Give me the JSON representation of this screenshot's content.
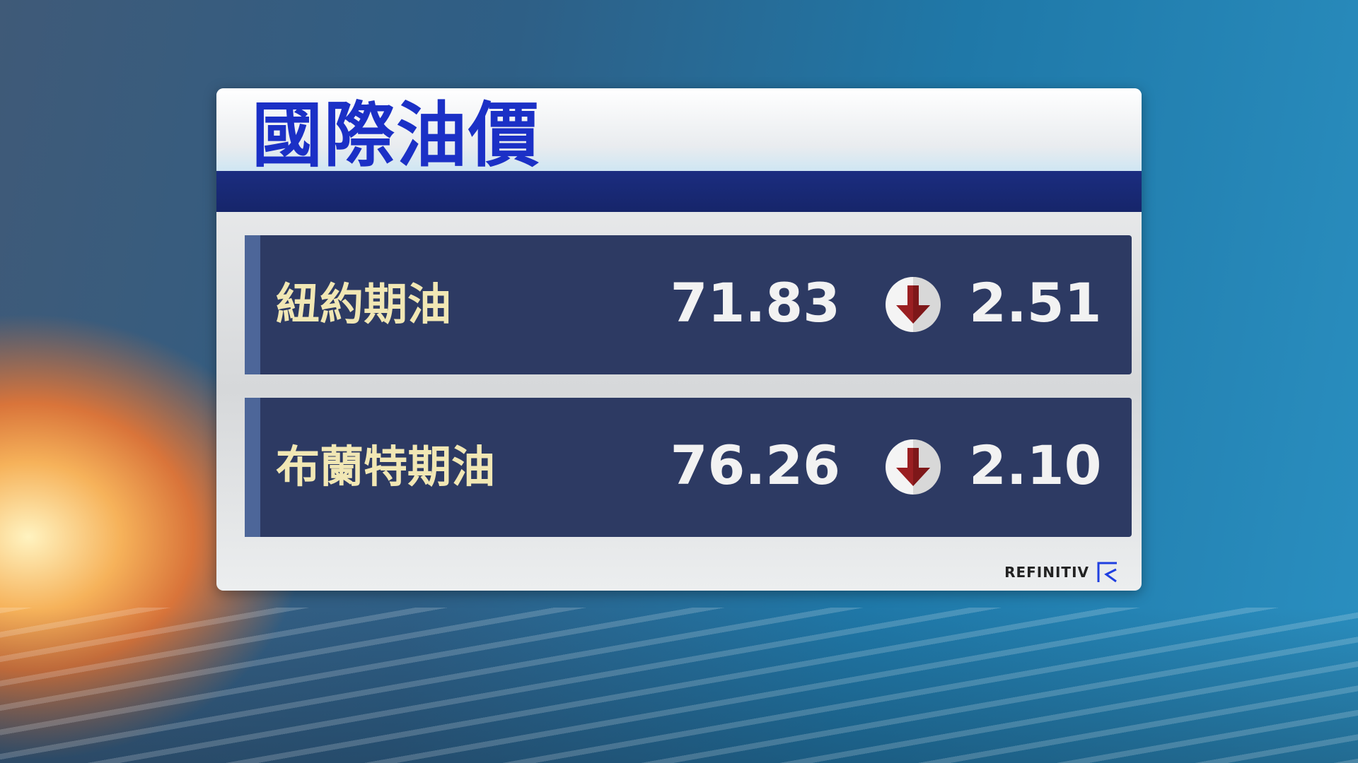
{
  "title": "國際油價",
  "rows": [
    {
      "label": "紐約期油",
      "price": "71.83",
      "direction": "down",
      "change": "2.51"
    },
    {
      "label": "布蘭特期油",
      "price": "76.26",
      "direction": "down",
      "change": "2.10"
    }
  ],
  "source": "REFINITIV",
  "colors": {
    "title": "#1b30c6",
    "row_bg": "#2d3a63",
    "label": "#f1e7b4",
    "arrow_down": "#9a1f22"
  }
}
